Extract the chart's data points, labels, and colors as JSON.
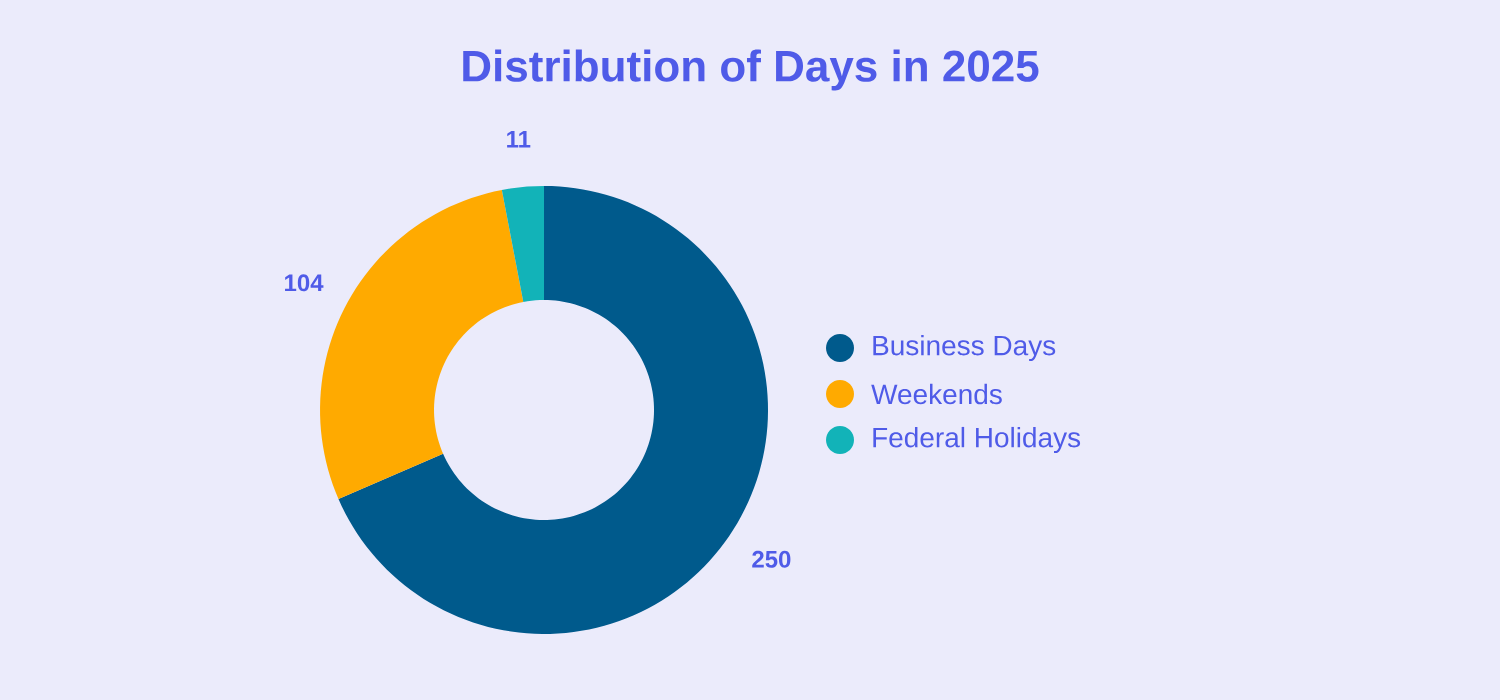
{
  "chart_data": {
    "type": "donut",
    "title": "Distribution of Days in 2025",
    "categories": [
      "Business Days",
      "Weekends",
      "Federal Holidays"
    ],
    "values": [
      250,
      104,
      11
    ],
    "colors": [
      "#005a8c",
      "#ffaa00",
      "#12b3b8"
    ],
    "data_labels": true,
    "legend": "right"
  }
}
